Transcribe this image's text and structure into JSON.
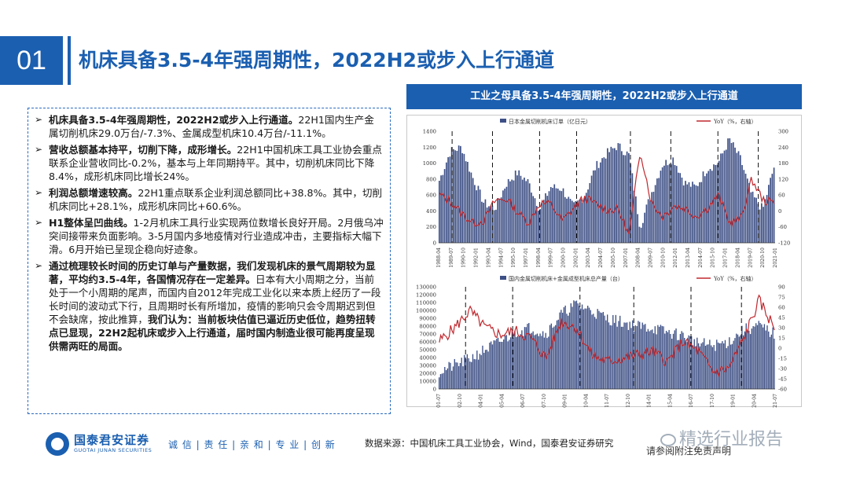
{
  "header": {
    "section_number": "01",
    "title": "机床具备3.5-4年强周期性，2022H2或步入上行通道"
  },
  "bullets": [
    {
      "bold": "机床具备3.5-4年强周期性，2022H2或步入上行通道。",
      "text": "22H1国内生产金属切削机床29.0万台/-7.3%、金属成型机床10.4万台/-11.1%。",
      "tail_bold": "",
      "tail": ""
    },
    {
      "bold": "营收总额基本持平，切削下降，成形增长。",
      "text": "22H1中国机床工具工业协会重点联系企业营收同比-0.2%，基本与上年同期持平。其中，切削机床同比下降8.4%，成形机床同比增长24%。",
      "tail_bold": "",
      "tail": ""
    },
    {
      "bold": "利润总额增速较高。",
      "text": "22H1重点联系企业利润总额同比+38.8%。其中，切削机床同比+28.1%，成形机床同比+60.6%。",
      "tail_bold": "",
      "tail": ""
    },
    {
      "bold": "H1整体呈凹曲线。",
      "text": "1-2月机床工具行业实现两位数增长良好开局。2月俄乌冲突间接带来负面影响。3-5月国内多地疫情对行业造成冲击，主要指标大幅下滑。6月开始已呈现企稳向好迹象。",
      "tail_bold": "",
      "tail": ""
    },
    {
      "bold": "通过梳理较长时间的历史订单与产量数据，我们发现机床的景气周期较为显著，平均约3.5-4年，各国情况存在一定差异。",
      "text": "日本有大小周期之分，当前处于一个小周期的尾声，而国内自2012年完成工业化以来本质上经历了一段长时间的波动式下行，且周期时长有所增加，疫情的影响只会令周期迟到但不会缺席，按此推算，",
      "tail_bold": "我们认为：当前板块估值已逼近历史低位，趋势扭转点已显现，22H2起机床或步入上行通道，届时国内制造业很可能再度呈现供需两旺的局面。",
      "tail": ""
    }
  ],
  "chart_panel": {
    "header": "工业之母具备3.5-4年强周期性，2022H2或步入上行通道"
  },
  "chart_data": [
    {
      "type": "bar+line",
      "legend": [
        "日本金属切削机床订单（亿日元）",
        "YoY（%，右轴）"
      ],
      "ylim_left": [
        0,
        1400
      ],
      "yticks_left": [
        "0",
        "200",
        "400",
        "600",
        "800",
        "1000",
        "1200",
        "1400"
      ],
      "ylim_right": [
        -120,
        300
      ],
      "yticks_right": [
        "-120",
        "-60",
        "0",
        "60",
        "120",
        "180",
        "240",
        "300"
      ],
      "x_labels": [
        "1988-04",
        "1989-07",
        "1990-10",
        "1992-01",
        "1993-04",
        "1994-07",
        "1995-10",
        "1997-01",
        "1998-04",
        "1999-07",
        "2000-10",
        "2002-01",
        "2003-04",
        "2004-07",
        "2005-10",
        "2007-01",
        "2008-04",
        "2009-07",
        "2010-10",
        "2012-01",
        "2013-04",
        "2014-07",
        "2015-10",
        "2017-01",
        "2018-04",
        "2019-07",
        "2020-10",
        "2021-01"
      ],
      "orders_anchor_values": [
        780,
        1150,
        1200,
        820,
        500,
        430,
        740,
        880,
        760,
        420,
        700,
        680,
        450,
        580,
        950,
        1120,
        1220,
        1100,
        200,
        620,
        980,
        1060,
        750,
        700,
        930,
        1000,
        1300,
        1050,
        600,
        420,
        950
      ],
      "yoy_anchor_values": [
        60,
        35,
        -10,
        -45,
        -35,
        40,
        45,
        -5,
        -45,
        30,
        25,
        -40,
        10,
        50,
        25,
        5,
        5,
        -90,
        230,
        30,
        -20,
        20,
        10,
        -20,
        10,
        60,
        -45,
        -30,
        120,
        40,
        30
      ]
    },
    {
      "type": "bar+line",
      "legend": [
        "国内金属切削机床+金属成型机床总产量（台）",
        "YoY（%，右轴）"
      ],
      "ylim_left": [
        0,
        130000
      ],
      "yticks_left": [
        "0",
        "10000",
        "20000",
        "30000",
        "40000",
        "50000",
        "60000",
        "70000",
        "80000",
        "90000",
        "100000",
        "110000",
        "120000",
        "130000"
      ],
      "ylim_right": [
        -60,
        90
      ],
      "yticks_right": [
        "-60",
        "-45",
        "-30",
        "-15",
        "0",
        "15",
        "30",
        "45",
        "60",
        "75",
        "90"
      ],
      "x_labels": [
        "2001-07",
        "2002-10",
        "2004-01",
        "2005-04",
        "2006-07",
        "2007-10",
        "2009-01",
        "2010-04",
        "2011-07",
        "2012-10",
        "2014-01",
        "2015-04",
        "2016-07",
        "2017-10",
        "2019-01",
        "2020-04",
        "2021-07"
      ],
      "production_anchor_values": [
        22000,
        30000,
        38000,
        50000,
        60000,
        72000,
        78000,
        70000,
        95000,
        108000,
        100000,
        90000,
        85000,
        80000,
        78000,
        72000,
        68000,
        58000,
        55000,
        60000,
        75000,
        80000,
        70000
      ],
      "yoy_anchor_values": [
        10,
        30,
        55,
        30,
        20,
        25,
        15,
        -15,
        40,
        30,
        -10,
        -20,
        -15,
        -10,
        -5,
        -20,
        10,
        -5,
        -35,
        -30,
        15,
        70,
        30
      ]
    }
  ],
  "footer": {
    "company_cn": "国泰君安证券",
    "company_en": "GUOTAI JUNAN SECURITIES",
    "motto": "诚 信 | 责 任 | 亲 和 | 专 业 | 创 新",
    "source": "数据来源：中国机床工具工业协会，Wind，国泰君安证券研究",
    "disclaimer": "请参阅附注免责声明",
    "watermark": "精选行业报告"
  }
}
